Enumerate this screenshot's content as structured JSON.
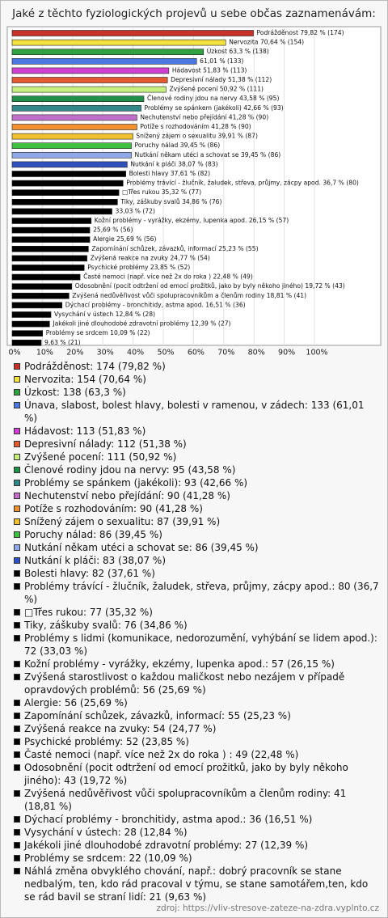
{
  "chart_data": {
    "type": "bar",
    "orientation": "horizontal",
    "title": "Jaké z těchto fyziologických projevů u sebe občas zaznamenávám:",
    "source": "zdroj: https://vliv-stresove-zateze-na-zdra.vyplnto.cz",
    "xlim": [
      0,
      100
    ],
    "xticks": [
      {
        "value": 0,
        "label": "0%"
      },
      {
        "value": 10,
        "label": "10%"
      },
      {
        "value": 20,
        "label": "20%"
      },
      {
        "value": 30,
        "label": "30%"
      },
      {
        "value": 40,
        "label": "40%"
      },
      {
        "value": 50,
        "label": "50%"
      },
      {
        "value": 60,
        "label": "60%"
      },
      {
        "value": 70,
        "label": "70%"
      },
      {
        "value": 80,
        "label": "80%"
      },
      {
        "value": 90,
        "label": "90%"
      },
      {
        "value": 100,
        "label": "100%"
      }
    ],
    "grid": true,
    "values": [
      79.82,
      70.64,
      63.3,
      61.01,
      51.83,
      51.38,
      50.92,
      43.58,
      42.66,
      41.28,
      41.28,
      39.91,
      39.45,
      39.45,
      38.07,
      37.61,
      36.7,
      35.32,
      34.86,
      33.03,
      26.15,
      25.69,
      25.69,
      25.23,
      24.77,
      23.85,
      22.48,
      19.72,
      18.81,
      16.51,
      12.84,
      12.39,
      10.09,
      9.63
    ],
    "value_labels": [
      "Podrážděnost 79,82 % (174)",
      "Nervozita 70,64 % (154)",
      "Úzkost 63,3 % (138)",
      "61,01 % (133)",
      "Hádavost 51,83 % (113)",
      "Depresivní nálady 51,38 % (112)",
      "Zvýšené pocení 50,92 % (111)",
      "Členové rodiny jdou na nervy 43,58 % (95)",
      "Problémy se spánkem (jakékoli) 42,66 % (93)",
      "Nechutenství nebo přejídání 41,28 % (90)",
      "Potíže s rozhodováním 41,28 % (90)",
      "Snížený zájem o sexualitu 39,91 % (87)",
      "Poruchy nálad 39,45 % (86)",
      "Nutkání někam utéci a schovat se 39,45 % (86)",
      "Nutkání k pláči 38,07 % (83)",
      "Bolesti hlavy 37,61 % (82)",
      "Problémy trávící - žlučník, žaludek, střeva, průjmy, zácpy apod. 36,7 % (80)",
      "□Třes rukou 35,32 % (77)",
      "Tiky, záškuby svalů 34,86 % (76)",
      "33,03 % (72)",
      "Kožní problémy - vyrážky, ekzémy, lupenka apod. 26,15 % (57)",
      "25,69 % (56)",
      "Alergie 25,69 % (56)",
      "Zapomínání schůzek, závazků, informací 25,23 % (55)",
      "Zvýšená reakce na zvuky 24,77 % (54)",
      "Psychické problémy 23,85 % (52)",
      "Časté nemoci (např. více než 2x do roka ) 22,48 % (49)",
      "Odosobnění (pocit odtržení od emocí prožitků, jako by byly někoho jiného) 19,72 % (43)",
      "Zvýšená nedůvěřivost vůči spolupracovníkům a členům rodiny 18,81 % (41)",
      "Dýchací problémy - bronchitidy, astma apod. 16,51 % (36)",
      "Vysychání v ústech 12,84 % (28)",
      "Jakékoli jiné dlouhodobé zdravotní problémy 12,39 % (27)",
      "Problémy se srdcem 10,09 % (22)",
      "9,63 % (21)"
    ],
    "legend": [
      "Podrážděnost: 174 (79,82 %)",
      "Nervozita: 154 (70,64 %)",
      "Úzkost: 138 (63,3 %)",
      "Únava, slabost, bolest hlavy, bolesti v ramenou, v zádech: 133 (61,01 %)",
      "Hádavost: 113 (51,83 %)",
      "Depresivní nálady: 112 (51,38 %)",
      "Zvýšené pocení: 111 (50,92 %)",
      "Členové rodiny jdou na nervy: 95 (43,58 %)",
      "Problémy se spánkem (jakékoli): 93 (42,66 %)",
      "Nechutenství nebo přejídání: 90 (41,28 %)",
      "Potíže s rozhodováním: 90 (41,28 %)",
      "Snížený zájem o sexualitu: 87 (39,91 %)",
      "Poruchy nálad: 86 (39,45 %)",
      "Nutkání někam utéci a schovat se: 86 (39,45 %)",
      "Nutkání k pláči: 83 (38,07 %)",
      "Bolesti hlavy: 82 (37,61 %)",
      "Problémy trávící - žlučník, žaludek, střeva, průjmy, zácpy apod.: 80 (36,7 %)",
      "□Třes rukou: 77 (35,32 %)",
      "Tiky, záškuby svalů: 76 (34,86 %)",
      "Problémy s lidmi (komunikace, nedorozumění, vyhýbání se lidem apod.): 72 (33,03 %)",
      "Kožní problémy - vyrážky, ekzémy, lupenka apod.: 57 (26,15 %)",
      "Zvýšená starostlivost o každou maličkost nebo nezájem v případě opravdových problémů: 56 (25,69 %)",
      "Alergie: 56 (25,69 %)",
      "Zapomínání schůzek, závazků, informací: 55 (25,23 %)",
      "Zvýšená reakce na zvuky: 54 (24,77 %)",
      "Psychické problémy: 52 (23,85 %)",
      "Časté nemoci (např. více než 2x do roka ) : 49 (22,48 %)",
      "Odosobnění (pocit odtržení od emocí prožitků, jako by byly někoho jiného): 43 (19,72 %)",
      "Zvýšená nedůvěřivost vůči spolupracovníkům a členům rodiny: 41 (18,81 %)",
      "Dýchací problémy - bronchitidy, astma apod.: 36 (16,51 %)",
      "Vysychání v ústech: 28 (12,84 %)",
      "Jakékoli jiné dlouhodobé zdravotní problémy: 27 (12,39 %)",
      "Problémy se srdcem: 22 (10,09 %)",
      "Náhlá změna obvyklého chování, např.: dobrý pracovník se stane nedbalým, ten, kdo rád pracoval v týmu, se stane samotářem,ten, kdo se rád bavil se straní lidí: 21 (9,63 %)"
    ],
    "colors": [
      "#c8302a",
      "#f0e040",
      "#30a040",
      "#4a78e0",
      "#d040d0",
      "#e45a30",
      "#c8f080",
      "#209048",
      "#308888",
      "#c070c8",
      "#f09030",
      "#f0c030",
      "#40c040",
      "#90a8e8",
      "#3050c0",
      "#000000",
      "#000000",
      "#000000",
      "#000000",
      "#000000",
      "#000000",
      "#000000",
      "#000000",
      "#000000",
      "#000000",
      "#000000",
      "#000000",
      "#000000",
      "#000000",
      "#000000",
      "#000000",
      "#000000",
      "#000000",
      "#000000"
    ]
  }
}
